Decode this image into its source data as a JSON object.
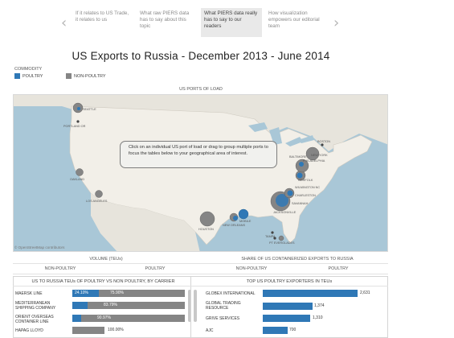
{
  "nav": {
    "items": [
      {
        "text": "If it relates to US Trade, it relates to us"
      },
      {
        "text": "What raw PIERS data has to say about this topic"
      },
      {
        "text": "What PIERS data really has to say to our readers"
      },
      {
        "text": "How visualization empowers our editorial team"
      }
    ]
  },
  "title": "US Exports to Russia - December 2013 - June 2014",
  "legend": {
    "title": "COMMODITY",
    "items": [
      {
        "label": "POULTRY",
        "color": "#2f78b6"
      },
      {
        "label": "NON-POULTRY",
        "color": "#858585"
      }
    ]
  },
  "map": {
    "title": "US PORTS OF LOAD",
    "attribution": "© OpenStreetMap contributors",
    "tooltip": "Click on an individual US port of load or drag to group multiple ports to focus the tables below to your geographical area of interest.",
    "ports": [
      {
        "label": "SEATTLE"
      },
      {
        "label": "PORTLAND OR"
      },
      {
        "label": "OAKLAND"
      },
      {
        "label": "LOS ANGELES"
      },
      {
        "label": "HOUSTON"
      },
      {
        "label": "NEW ORLEANS"
      },
      {
        "label": "MOBILE"
      },
      {
        "label": "JACKSONVILLE"
      },
      {
        "label": "SAVANNAH"
      },
      {
        "label": "CHARLESTON"
      },
      {
        "label": "WILMINGTON NC"
      },
      {
        "label": "NORFOLK"
      },
      {
        "label": "BALTIMORE"
      },
      {
        "label": "PHILADELPHIA"
      },
      {
        "label": "NEW YORK"
      },
      {
        "label": "BOSTON"
      },
      {
        "label": "TAMPA"
      },
      {
        "label": "PT EVERGLADES"
      }
    ]
  },
  "summary": {
    "volume_header": "VOLUME (TEUs)",
    "share_header": "SHARE OF US CONTAINERIZED EXPORTS TO RUSSIA",
    "sub_labels": [
      "NON-POULTRY",
      "POULTRY",
      "NON-POULTRY",
      "POULTRY"
    ]
  },
  "carrier_panel": {
    "title": "US TO RUSSIA TEUs OF POULTRY VS NON POULTRY, BY CARRIER",
    "rows": [
      {
        "name": "MAERSK LINE",
        "poultry": "24.10%",
        "non_poultry": "75.90%"
      },
      {
        "name": "MEDITERRANEAN SHIPPING COMPANY",
        "poultry": "",
        "non_poultry": "83.79%"
      },
      {
        "name": "ORIENT OVERSEAS CONTAINER LINE",
        "poultry": "",
        "non_poultry": "90.97%"
      },
      {
        "name": "HAPAG LLOYD",
        "poultry": "",
        "non_poultry": "100.00%"
      }
    ]
  },
  "exporter_panel": {
    "title": "TOP US POULTRY EXPORTERS IN TEUs",
    "rows": [
      {
        "name": "GLOBEX INTERNATIONAL",
        "value": "2,631"
      },
      {
        "name": "GLOBAL TRADING RESOURCE",
        "value": "1,374"
      },
      {
        "name": "GRIVE SERVICES",
        "value": "1,310"
      },
      {
        "name": "AJC",
        "value": "700"
      }
    ]
  }
}
